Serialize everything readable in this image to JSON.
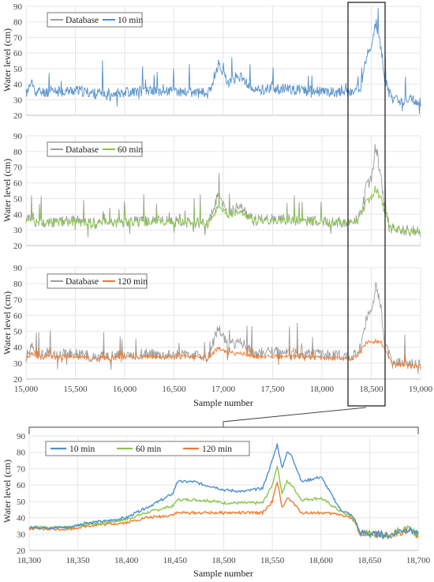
{
  "colors": {
    "database": "#9e9e9e",
    "10 min": "#4a90d2",
    "60 min": "#88c64a",
    "120 min": "#ee7b30",
    "grid": "#e6e6e6",
    "frame": "#222222"
  },
  "chart_data": [
    {
      "type": "line",
      "ylabel": "Water level (cm)",
      "xlabel": "",
      "xlim": [
        15000,
        19000
      ],
      "ylim": [
        20,
        90
      ],
      "x_ticks": [],
      "y_ticks": [
        20,
        30,
        40,
        50,
        60,
        70,
        80,
        90
      ],
      "grid": true,
      "legend": "top-left",
      "series": [
        {
          "name": "Database",
          "color_key": "database"
        },
        {
          "name": "10 min",
          "color_key": "10 min"
        }
      ],
      "profile_x": [
        15000,
        15060,
        15100,
        15300,
        15500,
        15700,
        16000,
        16300,
        16600,
        16850,
        16950,
        17000,
        17050,
        17150,
        17300,
        17500,
        17800,
        18000,
        18300,
        18350,
        18400,
        18450,
        18500,
        18550,
        18600,
        18630,
        18700,
        18800,
        19000
      ],
      "database_profile": [
        34,
        41,
        35,
        35,
        36,
        34,
        35,
        36,
        35,
        34,
        53,
        47,
        40,
        46,
        36,
        37,
        36,
        35,
        35,
        36,
        41,
        58,
        62,
        80,
        64,
        45,
        31,
        30,
        29
      ],
      "model_profile": [
        34,
        41,
        35,
        35,
        36,
        34,
        35,
        36,
        35,
        34,
        53,
        47,
        40,
        46,
        36,
        37,
        36,
        35,
        35,
        36,
        41,
        58,
        62,
        80,
        64,
        45,
        31,
        30,
        29
      ]
    },
    {
      "type": "line",
      "ylabel": "Water level (cm)",
      "xlabel": "",
      "xlim": [
        15000,
        19000
      ],
      "ylim": [
        20,
        90
      ],
      "x_ticks": [],
      "y_ticks": [
        20,
        30,
        40,
        50,
        60,
        70,
        80,
        90
      ],
      "grid": true,
      "legend": "top-left",
      "series": [
        {
          "name": "Database",
          "color_key": "database"
        },
        {
          "name": "60 min",
          "color_key": "60 min"
        }
      ],
      "profile_x": [
        15000,
        15060,
        15100,
        15300,
        15500,
        15700,
        16000,
        16300,
        16600,
        16850,
        16950,
        17000,
        17050,
        17150,
        17300,
        17500,
        17800,
        18000,
        18300,
        18350,
        18400,
        18450,
        18500,
        18550,
        18600,
        18630,
        18700,
        18800,
        19000
      ],
      "database_profile": [
        34,
        41,
        35,
        35,
        36,
        34,
        35,
        36,
        35,
        34,
        53,
        47,
        40,
        46,
        36,
        37,
        36,
        35,
        35,
        36,
        41,
        58,
        62,
        80,
        64,
        45,
        31,
        30,
        29
      ],
      "model_profile": [
        34,
        38,
        35,
        35,
        35,
        34,
        35,
        35,
        35,
        34,
        45,
        43,
        39,
        42,
        36,
        36,
        36,
        35,
        35,
        35,
        40,
        48,
        50,
        54,
        51,
        42,
        31,
        30,
        29
      ]
    },
    {
      "type": "line",
      "ylabel": "Water level (cm)",
      "xlabel": "Sample number",
      "xlim": [
        15000,
        19000
      ],
      "ylim": [
        20,
        90
      ],
      "x_ticks": [
        15000,
        15500,
        16000,
        16500,
        17000,
        17500,
        18000,
        18500,
        19000
      ],
      "x_tick_labels": [
        "15,000",
        "15,500",
        "16,000",
        "16,500",
        "17,000",
        "17,500",
        "18,000",
        "18,500",
        "19,000"
      ],
      "y_ticks": [
        20,
        30,
        40,
        50,
        60,
        70,
        80,
        90
      ],
      "grid": true,
      "legend": "top-left",
      "series": [
        {
          "name": "Database",
          "color_key": "database"
        },
        {
          "name": "120 min",
          "color_key": "120 min"
        }
      ],
      "profile_x": [
        15000,
        15060,
        15100,
        15300,
        15500,
        15700,
        16000,
        16300,
        16600,
        16850,
        16950,
        17000,
        17050,
        17150,
        17300,
        17500,
        17800,
        18000,
        18300,
        18350,
        18400,
        18450,
        18500,
        18550,
        18600,
        18630,
        18700,
        18800,
        19000
      ],
      "database_profile": [
        34,
        41,
        35,
        35,
        36,
        34,
        35,
        36,
        35,
        34,
        53,
        47,
        40,
        46,
        36,
        37,
        36,
        35,
        35,
        36,
        41,
        58,
        62,
        80,
        64,
        45,
        31,
        30,
        29
      ],
      "model_profile": [
        33,
        36,
        34,
        34,
        34,
        33,
        34,
        34,
        34,
        33,
        40,
        38,
        36,
        37,
        34,
        34,
        34,
        33,
        33,
        34,
        38,
        43,
        43,
        44,
        43,
        40,
        30,
        29,
        28
      ]
    },
    {
      "type": "line",
      "ylabel": "Water level (cm)",
      "xlabel": "Sample number",
      "xlim": [
        18300,
        18700
      ],
      "ylim": [
        20,
        90
      ],
      "x_ticks": [
        18300,
        18350,
        18400,
        18450,
        18500,
        18550,
        18600,
        18650,
        18700
      ],
      "x_tick_labels": [
        "18,300",
        "18,350",
        "18,400",
        "18,450",
        "18,500",
        "18,550",
        "18,600",
        "18,650",
        "18,700"
      ],
      "y_ticks": [
        20,
        30,
        40,
        50,
        60,
        70,
        80,
        90
      ],
      "grid": true,
      "legend": "top-center",
      "series": [
        {
          "name": "10 min",
          "color_key": "10 min",
          "x": [
            18300,
            18340,
            18360,
            18380,
            18400,
            18420,
            18440,
            18448,
            18452,
            18470,
            18480,
            18490,
            18500,
            18520,
            18540,
            18550,
            18555,
            18560,
            18565,
            18570,
            18580,
            18600,
            18620,
            18630,
            18635,
            18640,
            18650,
            18660,
            18670,
            18680,
            18690,
            18700
          ],
          "y": [
            34,
            34,
            37,
            38,
            40,
            46,
            52,
            55,
            62,
            62,
            60,
            59,
            57,
            56,
            58,
            75,
            85,
            70,
            80,
            78,
            62,
            65,
            45,
            42,
            39,
            31,
            30,
            30,
            29,
            32,
            33,
            30
          ]
        },
        {
          "name": "60 min",
          "color_key": "60 min",
          "x": [
            18300,
            18340,
            18360,
            18380,
            18400,
            18420,
            18440,
            18448,
            18452,
            18470,
            18490,
            18500,
            18520,
            18540,
            18550,
            18555,
            18560,
            18565,
            18570,
            18580,
            18600,
            18620,
            18630,
            18635,
            18640,
            18650,
            18660,
            18670,
            18680,
            18690,
            18700
          ],
          "y": [
            34,
            34,
            36,
            37,
            39,
            43,
            46,
            47,
            51,
            51,
            50,
            49,
            49,
            49,
            60,
            72,
            55,
            62,
            60,
            51,
            52,
            44,
            41,
            38,
            31,
            30,
            30,
            29,
            32,
            33,
            30
          ]
        },
        {
          "name": "120 min",
          "color_key": "120 min",
          "x": [
            18300,
            18340,
            18360,
            18380,
            18400,
            18420,
            18440,
            18448,
            18452,
            18470,
            18490,
            18500,
            18520,
            18540,
            18550,
            18555,
            18560,
            18565,
            18570,
            18580,
            18600,
            18620,
            18630,
            18635,
            18640,
            18650,
            18660,
            18670,
            18680,
            18690,
            18700
          ],
          "y": [
            33,
            33,
            35,
            36,
            37,
            40,
            41,
            42,
            43,
            43,
            43,
            43,
            43,
            43,
            50,
            62,
            46,
            52,
            50,
            43,
            43,
            42,
            40,
            37,
            30,
            30,
            29,
            28,
            31,
            32,
            29
          ]
        }
      ]
    }
  ]
}
